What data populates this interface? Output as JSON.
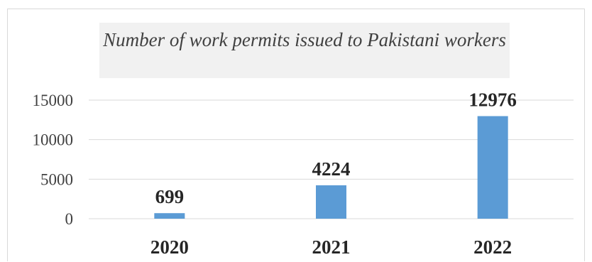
{
  "chart_data": {
    "type": "bar",
    "title": "Number of work permits issued to Pakistani workers",
    "categories": [
      "2020",
      "2021",
      "2022"
    ],
    "values": [
      699,
      4224,
      12976
    ],
    "data_labels": [
      "699",
      "4224",
      "12976"
    ],
    "ylim": [
      0,
      15000
    ],
    "yticks": [
      "0",
      "5000",
      "10000",
      "15000"
    ],
    "ytick_values": [
      0,
      5000,
      10000,
      15000
    ],
    "grid": true,
    "bar_color": "#5b9bd5",
    "gridline_color": "#d9d9d9"
  }
}
